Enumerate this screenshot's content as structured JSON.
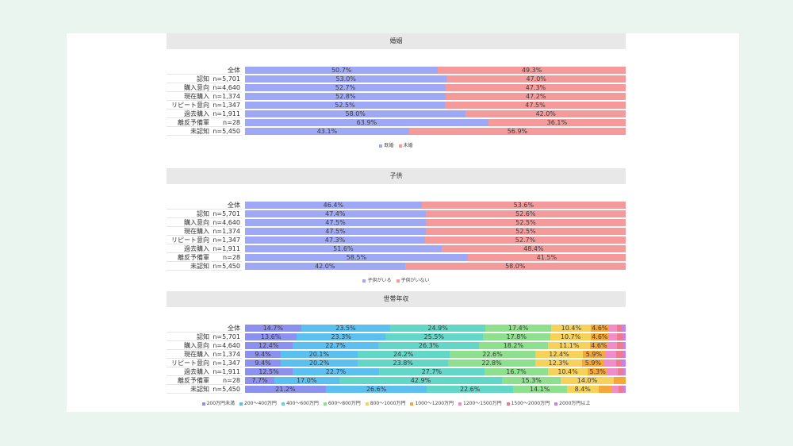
{
  "chart_data": [
    {
      "type": "bar",
      "stacked": true,
      "orientation": "horizontal",
      "title": "婚姻",
      "categories": [
        "全体",
        "認知",
        "購入意向",
        "現在購入",
        "リピート意向",
        "過去購入",
        "離反予備軍",
        "未認知"
      ],
      "n_labels": [
        "",
        "n=5,701",
        "n=4,640",
        "n=1,374",
        "n=1,347",
        "n=1,911",
        "n=28",
        "n=5,450"
      ],
      "series": [
        {
          "name": "既婚",
          "color": "#9fa8f5",
          "values": [
            50.7,
            53.0,
            52.7,
            52.8,
            52.5,
            58.0,
            63.9,
            43.1
          ]
        },
        {
          "name": "未婚",
          "color": "#f59a9a",
          "values": [
            49.3,
            47.0,
            47.3,
            47.2,
            47.5,
            42.0,
            36.1,
            56.9
          ]
        }
      ],
      "value_format": "%",
      "legend_position": "bottom"
    },
    {
      "type": "bar",
      "stacked": true,
      "orientation": "horizontal",
      "title": "子供",
      "categories": [
        "全体",
        "認知",
        "購入意向",
        "現在購入",
        "リピート意向",
        "過去購入",
        "離反予備軍",
        "未認知"
      ],
      "n_labels": [
        "",
        "n=5,701",
        "n=4,640",
        "n=1,374",
        "n=1,347",
        "n=1,911",
        "n=28",
        "n=5,450"
      ],
      "series": [
        {
          "name": "子供がいる",
          "color": "#9fa8f5",
          "values": [
            46.4,
            47.4,
            47.5,
            47.5,
            47.3,
            51.6,
            58.5,
            42.0
          ]
        },
        {
          "name": "子供がいない",
          "color": "#f59a9a",
          "values": [
            53.6,
            52.6,
            52.5,
            52.5,
            52.7,
            48.4,
            41.5,
            58.0
          ]
        }
      ],
      "value_format": "%",
      "legend_position": "bottom"
    },
    {
      "type": "bar",
      "stacked": true,
      "orientation": "horizontal",
      "title": "世帯年収",
      "categories": [
        "全体",
        "認知",
        "購入意向",
        "現在購入",
        "リピート意向",
        "過去購入",
        "離反予備軍",
        "未認知"
      ],
      "n_labels": [
        "",
        "n=5,701",
        "n=4,640",
        "n=1,374",
        "n=1,347",
        "n=1,911",
        "n=28",
        "n=5,450"
      ],
      "series": [
        {
          "name": "200万円未満",
          "color": "#8c91f0",
          "values": [
            14.7,
            13.6,
            12.4,
            9.4,
            9.4,
            12.5,
            7.7,
            21.2
          ]
        },
        {
          "name": "200～400万円",
          "color": "#5bbff0",
          "values": [
            23.5,
            23.3,
            22.7,
            20.1,
            20.2,
            22.7,
            17.0,
            26.6
          ]
        },
        {
          "name": "400～600万円",
          "color": "#62d6c7",
          "values": [
            24.9,
            25.5,
            26.3,
            24.2,
            23.8,
            27.7,
            42.9,
            22.6
          ]
        },
        {
          "name": "600～800万円",
          "color": "#8ee08e",
          "values": [
            17.4,
            17.8,
            18.2,
            22.6,
            22.8,
            16.7,
            15.3,
            14.1
          ]
        },
        {
          "name": "800～1000万円",
          "color": "#f7d25a",
          "values": [
            10.4,
            10.7,
            11.1,
            12.4,
            12.3,
            10.4,
            14.0,
            8.4
          ]
        },
        {
          "name": "1000～1200万円",
          "color": "#f5a83a",
          "values": [
            4.6,
            4.6,
            4.6,
            5.9,
            5.9,
            5.3,
            3.1,
            3.4
          ]
        },
        {
          "name": "1200～1500万円",
          "color": "#f08cc8",
          "values": [
            2.2,
            2.3,
            2.4,
            2.9,
            3.0,
            2.6,
            0,
            1.8
          ]
        },
        {
          "name": "1500～2000万円",
          "color": "#f07a8c",
          "values": [
            1.3,
            1.3,
            1.4,
            1.6,
            1.6,
            1.3,
            0,
            1.1
          ]
        },
        {
          "name": "2000万円以上",
          "color": "#c582e8",
          "values": [
            1.0,
            0.9,
            0.9,
            0.9,
            1.0,
            0.8,
            0,
            0.8
          ]
        }
      ],
      "value_format": "%",
      "legend_position": "bottom"
    }
  ]
}
